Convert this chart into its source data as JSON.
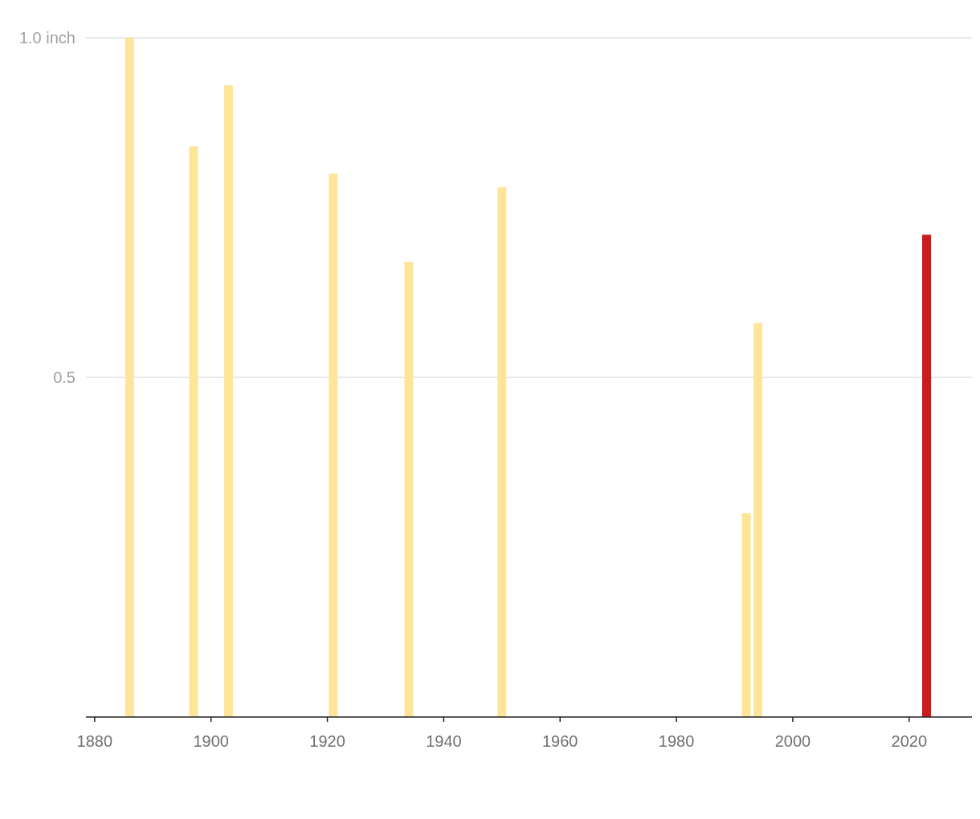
{
  "chart_data": {
    "type": "bar",
    "x": [
      1886,
      1897,
      1903,
      1921,
      1934,
      1950,
      1992,
      1994,
      2023
    ],
    "values": [
      1.0,
      0.84,
      0.93,
      0.8,
      0.67,
      0.78,
      0.3,
      0.58,
      0.71
    ],
    "colors": [
      "#fee59a",
      "#fee59a",
      "#fee59a",
      "#fee59a",
      "#fee59a",
      "#fee59a",
      "#fee59a",
      "#fee59a",
      "#c71e1d"
    ],
    "xlim": [
      1878.5,
      2030.8
    ],
    "xticks": [
      1880,
      1900,
      1920,
      1940,
      1960,
      1980,
      2000,
      2020
    ],
    "ylim": [
      0,
      1
    ],
    "yticks": [
      {
        "value": 0.5,
        "label": "0.5"
      },
      {
        "value": 1,
        "label": "1.0 inch"
      }
    ],
    "grid": "y"
  }
}
